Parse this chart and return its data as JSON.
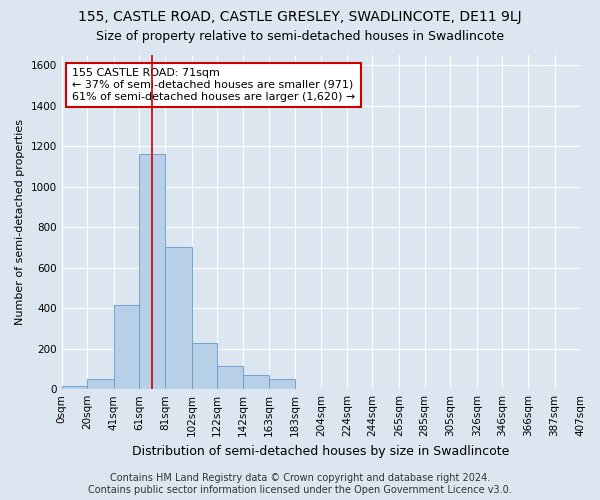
{
  "title": "155, CASTLE ROAD, CASTLE GRESLEY, SWADLINCOTE, DE11 9LJ",
  "subtitle": "Size of property relative to semi-detached houses in Swadlincote",
  "xlabel": "Distribution of semi-detached houses by size in Swadlincote",
  "ylabel": "Number of semi-detached properties",
  "footer_line1": "Contains HM Land Registry data © Crown copyright and database right 2024.",
  "footer_line2": "Contains public sector information licensed under the Open Government Licence v3.0.",
  "property_size": 71,
  "annotation_line1": "155 CASTLE ROAD: 71sqm",
  "annotation_line2": "← 37% of semi-detached houses are smaller (971)",
  "annotation_line3": "61% of semi-detached houses are larger (1,620) →",
  "bin_edges": [
    0,
    20,
    41,
    61,
    81,
    102,
    122,
    142,
    163,
    183,
    204,
    224,
    244,
    265,
    285,
    305,
    326,
    346,
    366,
    387,
    407
  ],
  "bar_heights": [
    15,
    50,
    415,
    1160,
    700,
    230,
    115,
    70,
    50,
    0,
    0,
    0,
    0,
    0,
    0,
    0,
    0,
    0,
    0,
    0
  ],
  "bar_color": "#b8cfe8",
  "bar_edge_color": "#6699cc",
  "red_line_x": 71,
  "ylim": [
    0,
    1650
  ],
  "yticks": [
    0,
    200,
    400,
    600,
    800,
    1000,
    1200,
    1400,
    1600
  ],
  "background_color": "#dce6f0",
  "plot_bg_color": "#dce6f0",
  "grid_color": "#ffffff",
  "annotation_box_facecolor": "#ffffff",
  "annotation_box_edgecolor": "#cc0000",
  "title_fontsize": 10,
  "subtitle_fontsize": 9,
  "xlabel_fontsize": 9,
  "ylabel_fontsize": 8,
  "tick_fontsize": 7.5,
  "annotation_fontsize": 8,
  "footer_fontsize": 7
}
